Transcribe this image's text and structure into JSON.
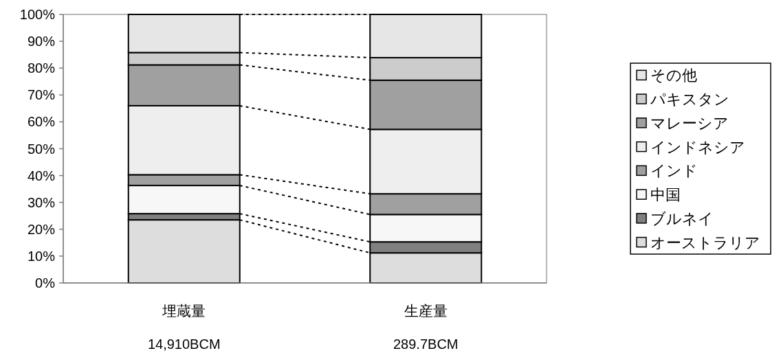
{
  "chart_data": {
    "type": "bar",
    "stacked": true,
    "categories": [
      "埋蔵量",
      "生産量"
    ],
    "series": [
      {
        "name": "オーストラリア",
        "color": "#dddddd",
        "values": [
          23.5,
          11.2
        ]
      },
      {
        "name": "ブルネイ",
        "color": "#808080",
        "values": [
          2.3,
          4.1
        ]
      },
      {
        "name": "中国",
        "color": "#f7f7f7",
        "values": [
          10.5,
          10.2
        ]
      },
      {
        "name": "インド",
        "color": "#a0a0a0",
        "values": [
          4.0,
          7.7
        ]
      },
      {
        "name": "インドネシア",
        "color": "#eeeeee",
        "values": [
          25.7,
          24.0
        ]
      },
      {
        "name": "マレーシア",
        "color": "#a0a0a0",
        "values": [
          15.2,
          18.3
        ]
      },
      {
        "name": "パキスタン",
        "color": "#cccccc",
        "values": [
          4.6,
          8.4
        ]
      },
      {
        "name": "その他",
        "color": "#e6e6e6",
        "values": [
          14.2,
          16.1
        ]
      }
    ],
    "ylim": [
      0,
      100
    ],
    "yticks": [
      {
        "value": 0,
        "label": "0%"
      },
      {
        "value": 10,
        "label": "10%"
      },
      {
        "value": 20,
        "label": "20%"
      },
      {
        "value": 30,
        "label": "30%"
      },
      {
        "value": 40,
        "label": "40%"
      },
      {
        "value": 50,
        "label": "50%"
      },
      {
        "value": 60,
        "label": "60%"
      },
      {
        "value": 70,
        "label": "70%"
      },
      {
        "value": 80,
        "label": "80%"
      },
      {
        "value": 90,
        "label": "90%"
      },
      {
        "value": 100,
        "label": "100%"
      }
    ],
    "annotations": [
      "14,910BCM",
      "289.7BCM"
    ],
    "legend": "right"
  }
}
